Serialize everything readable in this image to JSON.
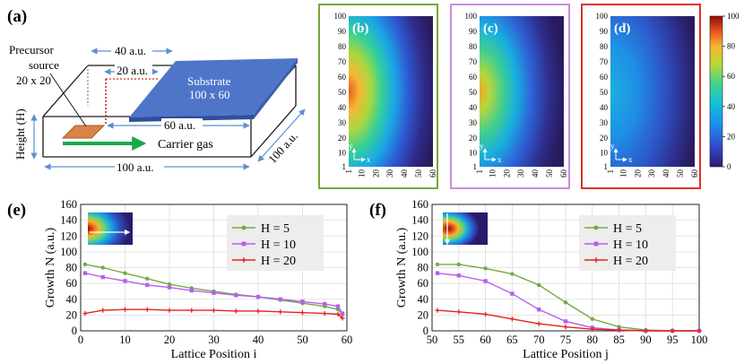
{
  "figure": {
    "panel_labels": [
      "(a)",
      "(b)",
      "(c)",
      "(d)",
      "(e)",
      "(f)"
    ],
    "schematic": {
      "precursor_label_1": "Precursor",
      "precursor_label_2": "source",
      "precursor_label_3": "20 x 20",
      "substrate_label_1": "Substrate",
      "substrate_label_2": "100 x 60",
      "dim_40": "40 a.u.",
      "dim_20": "20 a.u.",
      "dim_60": "60 a.u.",
      "dim_100_bottom": "100 a.u.",
      "dim_100_side": "100 a.u.",
      "height_label": "Height (H)",
      "carrier_gas_label": "Carrier gas",
      "colors": {
        "precursor": "#d9834a",
        "substrate": "#4f75c9",
        "carrier_arrow": "#1aa84c",
        "dotted_line": "#d62728",
        "dimension": "#5b8fd1"
      }
    },
    "heatmaps": {
      "frame_colors": [
        "#7aa637",
        "#c98ee0",
        "#e0302a"
      ],
      "y_ticks": [
        "100",
        "90",
        "80",
        "70",
        "60",
        "50",
        "40",
        "30",
        "20",
        "10",
        "1"
      ],
      "x_ticks": [
        "1",
        "10",
        "20",
        "30",
        "40",
        "50",
        "60"
      ],
      "axis_x": "x",
      "axis_y": "y",
      "colorbar_ticks": [
        "100",
        "80",
        "60",
        "40",
        "20",
        "0"
      ]
    }
  },
  "chart_data": [
    {
      "type": "line",
      "panel": "(e)",
      "xlabel": "Lattice Position i",
      "ylabel": "Growth N (a.u.)",
      "xlim": [
        0,
        60
      ],
      "ylim": [
        0,
        160
      ],
      "x_ticks": [
        0,
        10,
        20,
        30,
        40,
        50,
        60
      ],
      "y_ticks": [
        0,
        20,
        40,
        60,
        80,
        100,
        120,
        140,
        160
      ],
      "grid": true,
      "legend_position": "top-right",
      "series": [
        {
          "name": "H = 5",
          "color": "#76a843",
          "marker": "circle",
          "x": [
            1,
            5,
            10,
            15,
            20,
            25,
            30,
            35,
            40,
            45,
            50,
            55,
            58,
            59
          ],
          "y": [
            84,
            80,
            73,
            66,
            59,
            54,
            50,
            46,
            43,
            39,
            35,
            31,
            27,
            21
          ]
        },
        {
          "name": "H = 10",
          "color": "#b560f0",
          "marker": "square",
          "x": [
            1,
            5,
            10,
            15,
            20,
            25,
            30,
            35,
            40,
            45,
            50,
            55,
            58,
            59
          ],
          "y": [
            73,
            68,
            63,
            58,
            55,
            51,
            48,
            45,
            43,
            40,
            37,
            34,
            31,
            22
          ]
        },
        {
          "name": "H = 20",
          "color": "#e3241f",
          "marker": "plus",
          "x": [
            1,
            5,
            10,
            15,
            20,
            25,
            30,
            35,
            40,
            45,
            50,
            55,
            58,
            59
          ],
          "y": [
            22,
            26,
            27,
            27,
            26,
            26,
            26,
            25,
            25,
            24,
            23,
            22,
            21,
            16
          ]
        }
      ]
    },
    {
      "type": "line",
      "panel": "(f)",
      "xlabel": "Lattice Position j",
      "ylabel": "Growth N (a.u.)",
      "xlim": [
        50,
        100
      ],
      "ylim": [
        0,
        160
      ],
      "x_ticks": [
        50,
        55,
        60,
        65,
        70,
        75,
        80,
        85,
        90,
        95,
        100
      ],
      "y_ticks": [
        0,
        20,
        40,
        60,
        80,
        100,
        120,
        140,
        160
      ],
      "grid": true,
      "legend_position": "top-right",
      "series": [
        {
          "name": "H = 5",
          "color": "#76a843",
          "marker": "circle",
          "x": [
            51,
            55,
            60,
            65,
            70,
            75,
            80,
            85,
            90,
            95,
            100
          ],
          "y": [
            84,
            84,
            79,
            72,
            58,
            36,
            15,
            5,
            1,
            0,
            0
          ]
        },
        {
          "name": "H = 10",
          "color": "#b560f0",
          "marker": "square",
          "x": [
            51,
            55,
            60,
            65,
            70,
            75,
            80,
            85,
            90,
            95,
            100
          ],
          "y": [
            73,
            70,
            63,
            47,
            27,
            12,
            4,
            1,
            0,
            0,
            0
          ]
        },
        {
          "name": "H = 20",
          "color": "#e3241f",
          "marker": "plus",
          "x": [
            51,
            55,
            60,
            65,
            70,
            75,
            80,
            85,
            90,
            95,
            100
          ],
          "y": [
            26,
            24,
            21,
            15,
            9,
            5,
            2,
            1,
            0,
            0,
            0
          ]
        }
      ]
    }
  ]
}
